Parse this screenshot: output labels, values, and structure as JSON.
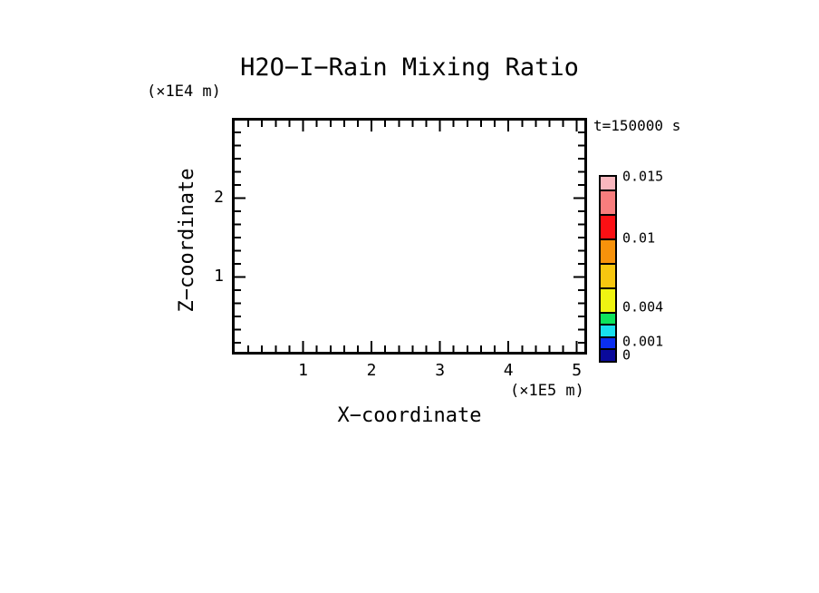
{
  "title": "H2O−I−Rain Mixing Ratio",
  "time_label": "t=150000 s",
  "axes": {
    "x": {
      "label": "X−coordinate",
      "unit_label": "(×1E5 m)"
    },
    "y": {
      "label": "Z−coordinate",
      "unit_label": "(×1E4 m)"
    }
  },
  "chart_data": {
    "type": "heatmap",
    "title": "H2O−I−Rain Mixing Ratio",
    "xlabel": "X−coordinate",
    "x_unit": "(×1E5 m)",
    "ylabel": "Z−coordinate",
    "y_unit": "(×1E4 m)",
    "annotation": "t=150000 s",
    "x_ticks": [
      1,
      2,
      3,
      4,
      5
    ],
    "y_ticks": [
      1,
      2
    ],
    "x_minor_per_unit": 5,
    "y_minor_per_unit": 6,
    "xlim": [
      0,
      5.11
    ],
    "ylim": [
      0.05,
      2.98
    ],
    "grid": false,
    "field_values": [],
    "field_note": "plot area is empty — rain mixing ratio is below the lowest contour level everywhere at this time",
    "colorbar": {
      "levels": [
        0,
        0.001,
        0.002,
        0.003,
        0.004,
        0.006,
        0.008,
        0.01,
        0.012,
        0.014,
        0.015
      ],
      "colors_low_to_high": [
        "#0a0a9b",
        "#0b2ff0",
        "#18dfee",
        "#0ee45c",
        "#eff312",
        "#f7c710",
        "#f7920b",
        "#fb1014",
        "#f87d7d",
        "#f9b7be"
      ],
      "tick_labels": [
        "0.015",
        "0.01",
        "0.004",
        "0.001",
        "0"
      ],
      "legend_position": "right"
    }
  }
}
